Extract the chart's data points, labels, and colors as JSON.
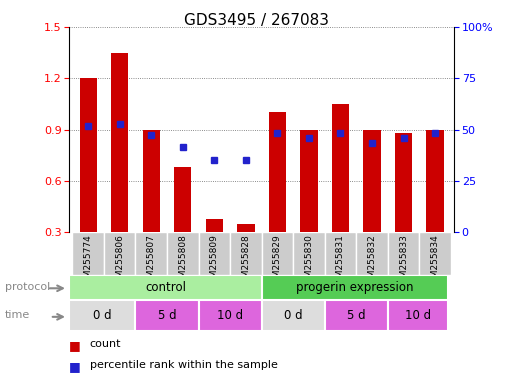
{
  "title": "GDS3495 / 267083",
  "samples": [
    "GSM255774",
    "GSM255806",
    "GSM255807",
    "GSM255808",
    "GSM255809",
    "GSM255828",
    "GSM255829",
    "GSM255830",
    "GSM255831",
    "GSM255832",
    "GSM255833",
    "GSM255834"
  ],
  "bar_heights": [
    1.2,
    1.35,
    0.9,
    0.68,
    0.38,
    0.35,
    1.0,
    0.9,
    1.05,
    0.9,
    0.88,
    0.9
  ],
  "blue_dots": [
    0.92,
    0.93,
    0.87,
    0.8,
    0.72,
    0.72,
    0.88,
    0.85,
    0.88,
    0.82,
    0.85,
    0.88
  ],
  "ylim_min": 0.3,
  "ylim_max": 1.5,
  "yticks_left": [
    0.3,
    0.6,
    0.9,
    1.2,
    1.5
  ],
  "yticks_right_pct": [
    0,
    25,
    50,
    75,
    100
  ],
  "yticks_right_labels": [
    "0",
    "25",
    "50",
    "75",
    "100%"
  ],
  "bar_color": "#cc0000",
  "dot_color": "#2222cc",
  "background_color": "#ffffff",
  "protocol_color_control": "#aaeea0",
  "protocol_color_progerin": "#55cc55",
  "protocol_border_color": "#44bb44",
  "time_color_0d": "#dddddd",
  "time_color_5d": "#dd66dd",
  "time_color_10d": "#dd66dd",
  "dotted_line_color": "#666666",
  "sample_bg_color": "#cccccc",
  "label_color": "#888888",
  "legend_count_color": "#cc0000",
  "legend_dot_color": "#2222cc",
  "time_configs": [
    [
      0,
      2,
      "0 d",
      "#dddddd"
    ],
    [
      2,
      4,
      "5 d",
      "#dd66dd"
    ],
    [
      4,
      6,
      "10 d",
      "#dd66dd"
    ],
    [
      6,
      8,
      "0 d",
      "#dddddd"
    ],
    [
      8,
      10,
      "5 d",
      "#dd66dd"
    ],
    [
      10,
      12,
      "10 d",
      "#dd66dd"
    ]
  ]
}
